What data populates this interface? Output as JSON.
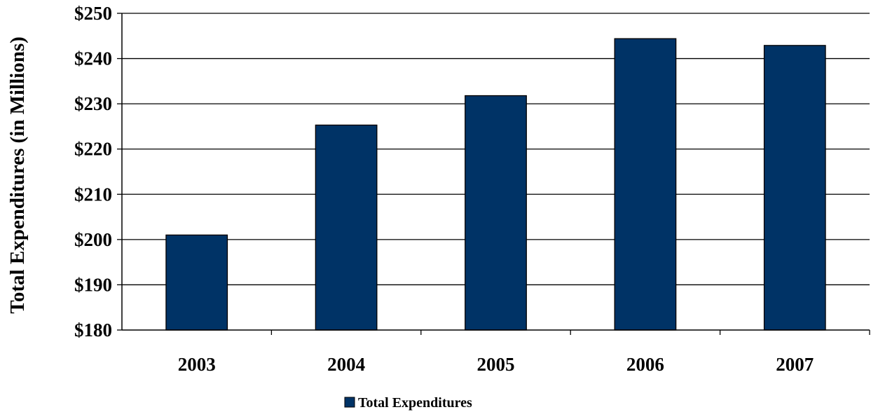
{
  "chart_data": {
    "type": "bar",
    "title": "",
    "xlabel": "",
    "ylabel": "Total Expenditures (in Millions)",
    "categories": [
      "2003",
      "2004",
      "2005",
      "2006",
      "2007"
    ],
    "series": [
      {
        "name": "Total Expenditures",
        "values": [
          201,
          225.3,
          231.8,
          244.4,
          242.9
        ],
        "color": "#003366"
      }
    ],
    "ylim": [
      180,
      250
    ],
    "ytick_values": [
      180,
      190,
      200,
      210,
      220,
      230,
      240,
      250
    ],
    "ytick_labels": [
      "$180",
      "$190",
      "$200",
      "$210",
      "$220",
      "$230",
      "$240",
      "$250"
    ],
    "grid": true,
    "legend": "bottom-center"
  }
}
